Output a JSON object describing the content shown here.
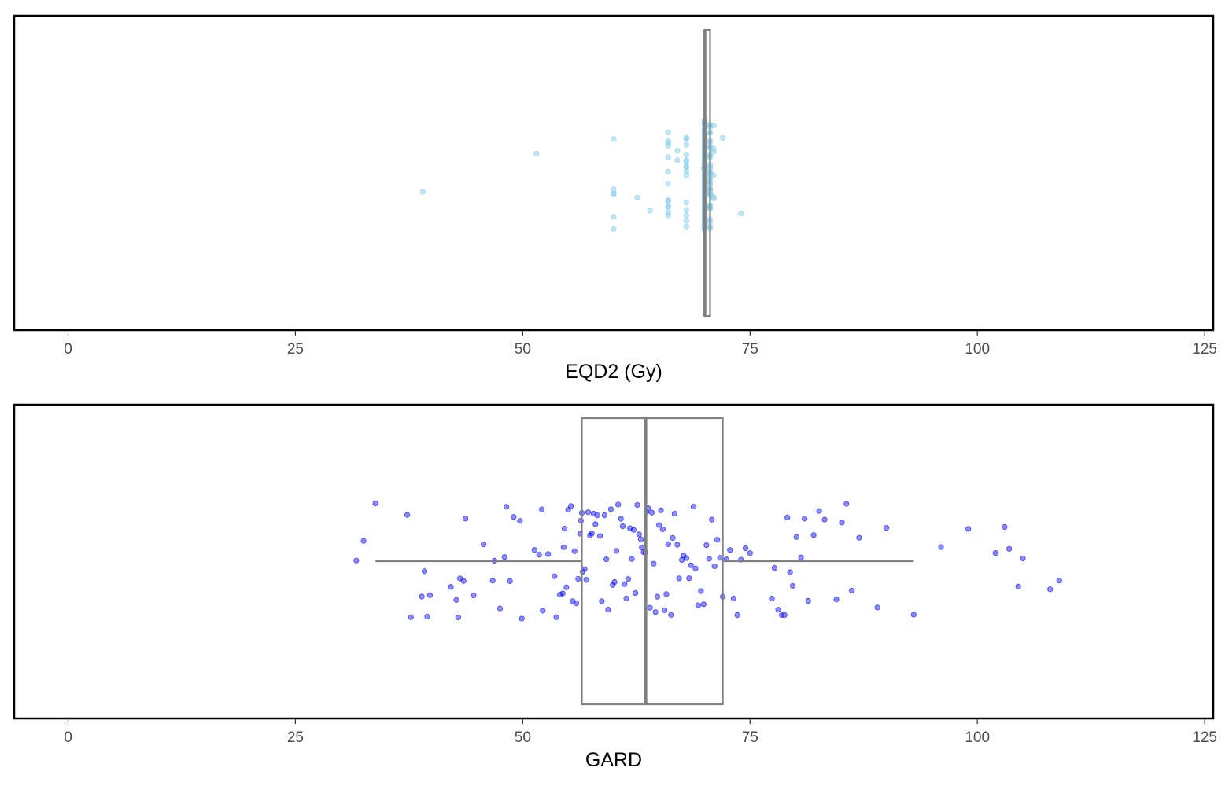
{
  "colors": {
    "panel_border": "#000000",
    "box_line": "#808080",
    "eqd2_points": "#87CEEB",
    "gard_points": "#0000FF"
  },
  "chart_data": [
    {
      "type": "boxplot-with-jitter",
      "orientation": "horizontal",
      "xlabel": "EQD2 (Gy)",
      "xlim": [
        -6,
        126
      ],
      "xticks": [
        0,
        25,
        50,
        75,
        100,
        125
      ],
      "grid": false,
      "point_color": "#87CEEB",
      "point_opacity": 0.5,
      "box": {
        "q1": 70,
        "median": 70,
        "q3": 70.6,
        "whisker_low": 70,
        "whisker_high": 70.6
      },
      "points": [
        39,
        51.5,
        60,
        60,
        60,
        60,
        60,
        60,
        62.6,
        64,
        66,
        66,
        66,
        66,
        66,
        66,
        66,
        66,
        66,
        66,
        66,
        66,
        66,
        67,
        67,
        68,
        68,
        68,
        68,
        68,
        68,
        68,
        68,
        68,
        68,
        68,
        68,
        68,
        68,
        68,
        69.9,
        70,
        70,
        70,
        70,
        70,
        70,
        70,
        70,
        70,
        70,
        70,
        70,
        70,
        70,
        70,
        70,
        70,
        70,
        70,
        70,
        70,
        70,
        70,
        70,
        70,
        70,
        70,
        70,
        70,
        70,
        70,
        70,
        70,
        70,
        70,
        70,
        70,
        70,
        70,
        70,
        70,
        70,
        70,
        70,
        70,
        70,
        70,
        70,
        70,
        70,
        70,
        70,
        70,
        70,
        70,
        70,
        70,
        70,
        70,
        70,
        70,
        70,
        70,
        70,
        70,
        70,
        70,
        70,
        70,
        70,
        70,
        70,
        70,
        70,
        70,
        70,
        70,
        70,
        70,
        70,
        70,
        70,
        70,
        70,
        70,
        70,
        70,
        70,
        70,
        70,
        70,
        70,
        70,
        70,
        70,
        70,
        70,
        70,
        70,
        70,
        70,
        70,
        70,
        70,
        70,
        70,
        70,
        70,
        70,
        70,
        70,
        70,
        70,
        70,
        70,
        70,
        70,
        70,
        70,
        70,
        70,
        70,
        70,
        70,
        70,
        70,
        70,
        70,
        70,
        70,
        70,
        70,
        70,
        70,
        70,
        70,
        70,
        70,
        70,
        70,
        70,
        70,
        70,
        70,
        70,
        70,
        70,
        70,
        70,
        70,
        70,
        70,
        70,
        70,
        70,
        70,
        70,
        70,
        70,
        70,
        70,
        70,
        70,
        70,
        70,
        70,
        70,
        70,
        70,
        70,
        70,
        70,
        70,
        70,
        70,
        70,
        70,
        70,
        70,
        70,
        70,
        70,
        70,
        70,
        70,
        70,
        70,
        70,
        70,
        70,
        70,
        70,
        70,
        70,
        70,
        70,
        70,
        70,
        70,
        70,
        70,
        70,
        70,
        70,
        70,
        70,
        70,
        70,
        70,
        70,
        70,
        70,
        70,
        70,
        70,
        70,
        70,
        70,
        70,
        70,
        70,
        70,
        70,
        70,
        70.6,
        70.6,
        70.6,
        70.6,
        70.6,
        70.6,
        70.6,
        70.6,
        70.6,
        70.6,
        70.6,
        70.6,
        70.6,
        70.6,
        70.6,
        70.6,
        70.6,
        70.6,
        70.6,
        70.6,
        70.6,
        70.6,
        70.6,
        70.6,
        70.6,
        70.6,
        70.6,
        70.6,
        70.6,
        70.6,
        70.6,
        70.6,
        70.6,
        70.6,
        70.6,
        70.6,
        70.6,
        70.6,
        70.6,
        70.6,
        71,
        71,
        71,
        71,
        71,
        71,
        72,
        74
      ]
    },
    {
      "type": "boxplot-with-jitter",
      "orientation": "horizontal",
      "xlabel": "GARD",
      "xlim": [
        -6,
        126
      ],
      "xticks": [
        0,
        25,
        50,
        75,
        100,
        125
      ],
      "grid": false,
      "point_color": "#0000FF",
      "point_opacity": 0.45,
      "box": {
        "q1": 56.5,
        "median": 63.5,
        "q3": 72,
        "whisker_low": 33.8,
        "whisker_high": 93
      },
      "points": [
        31.7,
        32.5,
        33.8,
        37.3,
        37.7,
        38.9,
        39.2,
        39.5,
        39.8,
        42.1,
        42.7,
        42.9,
        43.1,
        43.5,
        43.7,
        44.6,
        45.7,
        46.7,
        46.9,
        47.5,
        48.0,
        48.2,
        48.6,
        49.0,
        49.7,
        49.9,
        51.3,
        51.8,
        52.1,
        52.2,
        52.8,
        53.5,
        53.7,
        54.1,
        54.4,
        54.5,
        54.6,
        54.8,
        55.0,
        55.3,
        55.5,
        55.7,
        55.9,
        56.1,
        56.3,
        56.4,
        56.5,
        56.6,
        56.8,
        57.0,
        57.2,
        57.4,
        57.6,
        57.8,
        58.0,
        58.2,
        58.5,
        58.7,
        59.0,
        59.2,
        59.4,
        59.7,
        59.9,
        60.1,
        60.3,
        60.5,
        60.8,
        61.0,
        61.2,
        61.4,
        61.6,
        61.8,
        62.0,
        62.2,
        62.4,
        62.6,
        62.8,
        63.0,
        63.1,
        63.3,
        63.5,
        63.6,
        63.8,
        64.0,
        64.2,
        64.4,
        64.6,
        64.8,
        65.0,
        65.2,
        65.4,
        65.6,
        65.8,
        66.0,
        66.3,
        66.5,
        66.7,
        67.0,
        67.2,
        67.5,
        67.7,
        68.0,
        68.3,
        68.5,
        68.8,
        69.0,
        69.3,
        69.6,
        69.9,
        70.2,
        70.5,
        70.8,
        71.1,
        71.4,
        71.7,
        72.0,
        72.4,
        72.8,
        73.2,
        73.6,
        74.0,
        74.5,
        75.0,
        77.4,
        77.7,
        78.1,
        78.5,
        78.8,
        79.1,
        79.4,
        79.7,
        80.1,
        80.6,
        81.0,
        81.4,
        82.0,
        82.6,
        83.2,
        84.5,
        85.1,
        85.6,
        86.2,
        87.0,
        89.0,
        90.0,
        93.0,
        96.0,
        99.0,
        102.0,
        103.0,
        103.5,
        104.5,
        105.0,
        108.0,
        109.0
      ]
    }
  ]
}
